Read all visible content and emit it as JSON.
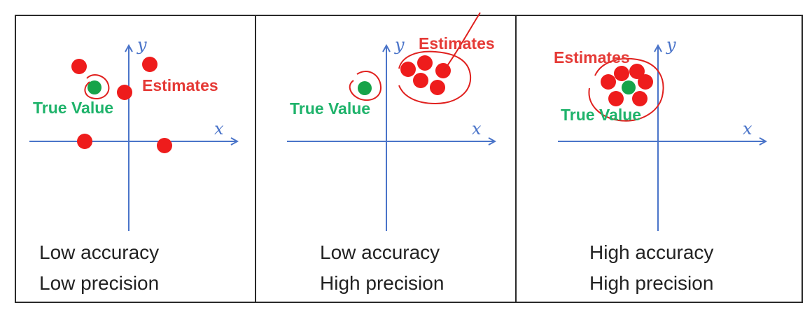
{
  "colors": {
    "axis": "#4a74c9",
    "estimate": "#ee1c1c",
    "true_value": "#16a34a",
    "true_label": "#1fb36b",
    "estimate_label": "#e53935",
    "annotation": "#e0201e",
    "frame": "#2a2a2a"
  },
  "axis_labels": {
    "x": "x",
    "y": "y"
  },
  "panels": [
    {
      "id": "panel-1",
      "estimates_label": "Estimates",
      "true_value_label": "True Value",
      "caption_line1": "Low accuracy",
      "caption_line2": "Low precision"
    },
    {
      "id": "panel-2",
      "estimates_label": "Estimates",
      "true_value_label": "True Value",
      "caption_line1": "Low accuracy",
      "caption_line2": "High precision"
    },
    {
      "id": "panel-3",
      "estimates_label": "Estimates",
      "true_value_label": "True Value",
      "caption_line1": "High accuracy",
      "caption_line2": "High precision"
    }
  ]
}
